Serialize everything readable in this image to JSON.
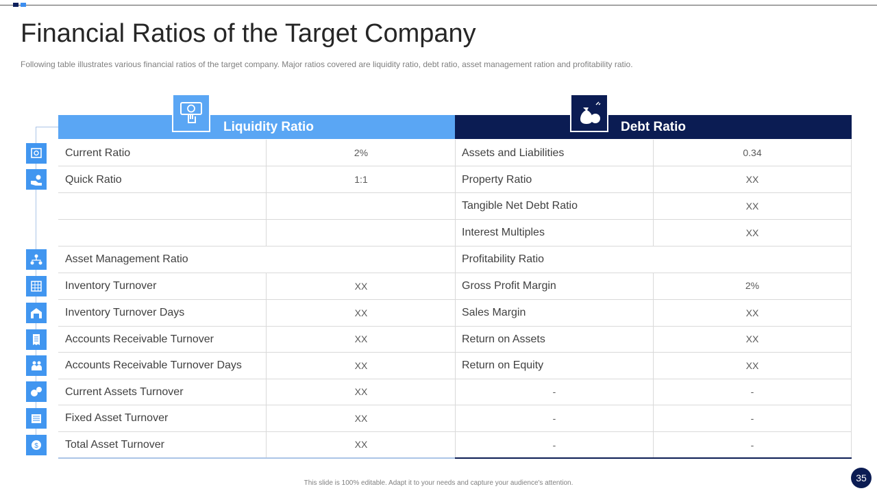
{
  "slide": {
    "title": "Financial Ratios of the Target Company",
    "subtitle": "Following table illustrates various financial ratios of the target company. Major ratios covered  are liquidity ratio, debt ratio, asset management  ration and profitability ratio.",
    "footer": "This slide is 100% editable.  Adapt it to your needs and capture your audience's attention.",
    "page_number": "35"
  },
  "headers": {
    "liquidity": "Liquidity Ratio",
    "debt": "Debt Ratio"
  },
  "left": {
    "current_ratio": "Current Ratio",
    "current_ratio_val": "2%",
    "quick_ratio": "Quick Ratio",
    "quick_ratio_val": "1:1",
    "asset_mgmt": "Asset Management  Ratio",
    "inv_turnover": "Inventory  Turnover",
    "inv_turnover_val": "XX",
    "inv_turnover_days": "Inventory  Turnover  Days",
    "inv_turnover_days_val": "XX",
    "ar_turnover": "Accounts Receivable Turnover",
    "ar_turnover_val": "XX",
    "ar_turnover_days": "Accounts Receivable Turnover  Days",
    "ar_turnover_days_val": "XX",
    "cur_assets_turnover": "Current Assets Turnover",
    "cur_assets_turnover_val": "XX",
    "fixed_asset_turnover": "Fixed Asset Turnover",
    "fixed_asset_turnover_val": "XX",
    "total_asset_turnover": "Total Asset Turnover",
    "total_asset_turnover_val": "XX"
  },
  "right": {
    "assets_liab": "Assets and Liabilities",
    "assets_liab_val": "0.34",
    "property_ratio": "Property Ratio",
    "property_ratio_val": "XX",
    "tangible_net_debt": "Tangible Net Debt Ratio",
    "tangible_net_debt_val": "XX",
    "interest_multiples": "Interest  Multiples",
    "interest_multiples_val": "XX",
    "profitability": "Profitability Ratio",
    "gross_profit_margin": "Gross Profit Margin",
    "gross_profit_margin_val": "2%",
    "sales_margin": "Sales Margin",
    "sales_margin_val": "XX",
    "roa": "Return on Assets",
    "roa_val": "XX",
    "roe": "Return on Equity",
    "roe_val": "XX",
    "dash": "-"
  },
  "colors": {
    "liquidity_blue": "#5aa6f4",
    "debt_navy": "#0b1c53",
    "icon_blue": "#4196f0"
  }
}
